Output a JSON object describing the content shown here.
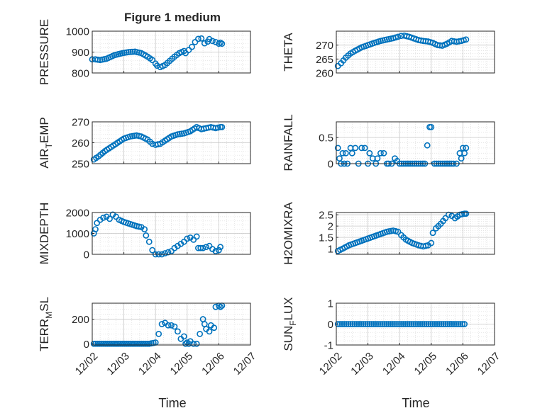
{
  "figure": {
    "title": "Figure 1 medium",
    "xlabel": "Time",
    "x_ticks": [
      "12/02",
      "12/03",
      "12/04",
      "12/05",
      "12/06",
      "12/07"
    ]
  },
  "colors": {
    "marker": "#0072BD",
    "axis": "#262626",
    "grid": "#c8c8c8",
    "minor_grid": "#dddddd"
  },
  "chart_data": [
    {
      "type": "scatter",
      "ylabel": "PRESSURE",
      "ylim": [
        800,
        1000
      ],
      "yticks": [
        800,
        900,
        1000
      ],
      "series": [
        {
          "name": "PRESSURE",
          "x": [
            2.0,
            2.1,
            2.25,
            2.45,
            2.7,
            2.95,
            3.15,
            3.35,
            3.55,
            3.75,
            3.9,
            4.0,
            4.05,
            4.15,
            4.3,
            4.45,
            4.6,
            4.75,
            4.9,
            4.95,
            5.05,
            5.15,
            5.25,
            5.35,
            5.45,
            5.55,
            5.65,
            5.7,
            5.8,
            5.9,
            6.0,
            6.05,
            6.1
          ],
          "y": [
            865,
            865,
            862,
            868,
            885,
            895,
            900,
            902,
            895,
            878,
            862,
            845,
            835,
            828,
            838,
            858,
            878,
            895,
            905,
            895,
            910,
            925,
            948,
            963,
            965,
            942,
            950,
            962,
            953,
            948,
            940,
            945,
            940
          ]
        }
      ]
    },
    {
      "type": "scatter",
      "ylabel": "THETA",
      "ylim": [
        260,
        275
      ],
      "yticks": [
        260,
        265,
        270
      ],
      "series": [
        {
          "name": "THETA",
          "x": [
            2.05,
            2.15,
            2.3,
            2.45,
            2.6,
            2.8,
            3.0,
            3.2,
            3.4,
            3.6,
            3.8,
            3.95,
            4.05,
            4.15,
            4.3,
            4.45,
            4.6,
            4.75,
            4.9,
            5.05,
            5.2,
            5.35,
            5.5,
            5.65,
            5.8,
            5.95,
            6.1
          ],
          "y": [
            262.5,
            263.5,
            265.5,
            267,
            268,
            269.2,
            270,
            270.8,
            271.5,
            272,
            272.5,
            273,
            273.3,
            273.4,
            273,
            272.4,
            271.8,
            271.5,
            271.3,
            270.8,
            270,
            269.8,
            270.5,
            271.5,
            271.2,
            271.5,
            272
          ]
        }
      ]
    },
    {
      "type": "scatter",
      "ylabel": "AIR_TEMP",
      "ylim": [
        250,
        270
      ],
      "yticks": [
        250,
        260,
        270
      ],
      "series": [
        {
          "name": "AIR_TEMP",
          "x": [
            2.05,
            2.2,
            2.4,
            2.6,
            2.8,
            3.0,
            3.2,
            3.4,
            3.55,
            3.75,
            3.9,
            4.0,
            4.15,
            4.3,
            4.5,
            4.7,
            4.9,
            5.1,
            5.3,
            5.45,
            5.6,
            5.75,
            5.9,
            6.05,
            6.1
          ],
          "y": [
            252,
            253.5,
            256,
            258,
            260,
            262,
            263,
            263.5,
            263,
            261.5,
            259.5,
            259,
            259.5,
            261,
            263,
            264,
            264.5,
            265.5,
            267.5,
            266.5,
            267,
            267.5,
            267,
            267.5,
            267.5
          ]
        }
      ]
    },
    {
      "type": "scatter",
      "ylabel": "RAINFALL",
      "ylim": [
        0,
        0.8
      ],
      "yticks": [
        0,
        0.5
      ],
      "series": [
        {
          "name": "RAINFALL",
          "x": [
            2.05,
            2.1,
            2.15,
            2.2,
            2.25,
            2.3,
            2.35,
            2.45,
            2.5,
            2.6,
            2.7,
            2.8,
            2.9,
            3.0,
            3.05,
            3.15,
            3.25,
            3.3,
            3.4,
            3.5,
            3.6,
            3.65,
            3.75,
            3.85,
            4.0,
            4.2,
            4.4,
            4.6,
            4.8,
            4.95,
            5.0,
            5.1,
            5.3,
            5.5,
            5.7,
            5.8,
            5.9,
            5.95,
            6.0,
            6.05,
            6.1
          ],
          "y": [
            0.3,
            0.1,
            0,
            0.2,
            0,
            0.2,
            0,
            0.3,
            0.2,
            0.3,
            0,
            0.3,
            0.3,
            0,
            0.2,
            0.1,
            0,
            0.1,
            0.2,
            0.2,
            0,
            0,
            0,
            0.1,
            0,
            0,
            0,
            0,
            0,
            0.7,
            0.7,
            0,
            0,
            0,
            0,
            0,
            0.2,
            0.1,
            0.3,
            0.2,
            0.3
          ]
        }
      ]
    },
    {
      "type": "scatter",
      "ylabel": "MIXDEPTH",
      "ylim": [
        0,
        2000
      ],
      "yticks": [
        0,
        1000,
        2000
      ],
      "series": [
        {
          "name": "MIXDEPTH",
          "x": [
            2.05,
            2.1,
            2.15,
            2.25,
            2.35,
            2.45,
            2.55,
            2.65,
            2.75,
            2.85,
            3.0,
            3.2,
            3.4,
            3.55,
            3.65,
            3.7,
            3.8,
            3.9,
            4.0,
            4.1,
            4.2,
            4.3,
            4.4,
            4.5,
            4.6,
            4.7,
            4.8,
            4.9,
            5.0,
            5.1,
            5.2,
            5.3,
            5.35,
            5.5,
            5.6,
            5.7,
            5.8,
            5.9,
            6.0,
            6.05
          ],
          "y": [
            1000,
            1200,
            1500,
            1650,
            1750,
            1800,
            1700,
            1900,
            1800,
            1650,
            1550,
            1450,
            1350,
            1300,
            1200,
            900,
            600,
            200,
            0,
            0,
            0,
            50,
            100,
            150,
            300,
            400,
            500,
            600,
            750,
            800,
            700,
            850,
            300,
            300,
            350,
            400,
            250,
            150,
            200,
            350
          ]
        }
      ]
    },
    {
      "type": "scatter",
      "ylabel": "H2OMIXRA",
      "ylim": [
        0.75,
        2.6
      ],
      "yticks": [
        1,
        1.5,
        2,
        2.5
      ],
      "series": [
        {
          "name": "H2OMIXRA",
          "x": [
            2.05,
            2.2,
            2.4,
            2.6,
            2.8,
            3.0,
            3.2,
            3.4,
            3.6,
            3.8,
            3.95,
            4.05,
            4.2,
            4.4,
            4.6,
            4.75,
            4.9,
            5.0,
            5.05,
            5.15,
            5.3,
            5.45,
            5.55,
            5.65,
            5.75,
            5.9,
            6.05,
            6.1
          ],
          "y": [
            0.9,
            1.0,
            1.15,
            1.25,
            1.35,
            1.45,
            1.55,
            1.65,
            1.75,
            1.8,
            1.75,
            1.6,
            1.4,
            1.25,
            1.15,
            1.1,
            1.15,
            1.25,
            1.7,
            1.9,
            2.1,
            2.35,
            2.5,
            2.45,
            2.35,
            2.5,
            2.55,
            2.55
          ]
        }
      ]
    },
    {
      "type": "scatter",
      "ylabel": "TERR_MSL",
      "ylim": [
        -10,
        330
      ],
      "yticks": [
        0,
        200
      ],
      "series": [
        {
          "name": "TERR_MSL",
          "x": [
            2.05,
            2.3,
            2.6,
            2.9,
            3.2,
            3.5,
            3.8,
            4.0,
            4.1,
            4.2,
            4.3,
            4.4,
            4.5,
            4.6,
            4.7,
            4.8,
            4.9,
            4.95,
            5.0,
            5.05,
            5.1,
            5.2,
            5.3,
            5.4,
            5.5,
            5.55,
            5.6,
            5.7,
            5.75,
            5.85,
            5.9,
            6.0,
            6.05,
            6.1
          ],
          "y": [
            0,
            0,
            0,
            0,
            0,
            0,
            0,
            10,
            80,
            160,
            170,
            150,
            150,
            140,
            100,
            40,
            60,
            0,
            10,
            0,
            20,
            0,
            0,
            80,
            200,
            160,
            120,
            100,
            150,
            130,
            300,
            310,
            300,
            310
          ]
        }
      ]
    },
    {
      "type": "scatter",
      "ylabel": "SUN_FLUX",
      "ylim": [
        -1,
        1
      ],
      "yticks": [
        -1,
        0,
        1
      ],
      "series": [
        {
          "name": "SUN_FLUX",
          "x": [
            2.05,
            2.25,
            2.45,
            2.65,
            2.85,
            3.05,
            3.25,
            3.45,
            3.65,
            3.85,
            4.05,
            4.25,
            4.45,
            4.65,
            4.85,
            5.05,
            5.25,
            5.45,
            5.65,
            5.85,
            6.05
          ],
          "y": [
            0,
            0,
            0,
            0,
            0,
            0,
            0,
            0,
            0,
            0,
            0,
            0,
            0,
            0,
            0,
            0,
            0,
            0,
            0,
            0,
            0
          ]
        }
      ]
    }
  ]
}
